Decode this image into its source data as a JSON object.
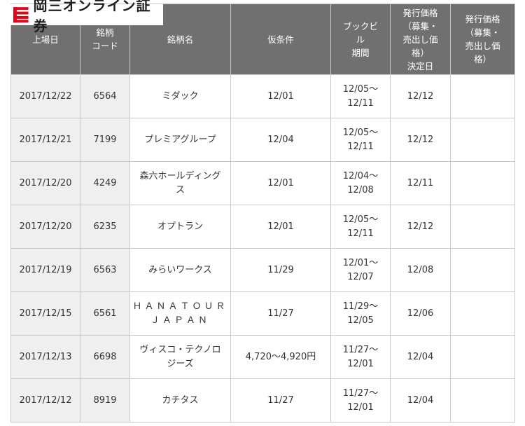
{
  "brand": {
    "name": "岡三オンライン証券",
    "mark_color": "#e60012"
  },
  "table": {
    "headers": [
      {
        "lines": [
          "上場日"
        ]
      },
      {
        "lines": [
          "銘柄",
          "コード"
        ]
      },
      {
        "lines": [
          "銘柄名"
        ]
      },
      {
        "lines": [
          "仮条件"
        ]
      },
      {
        "lines": [
          "ブックビ",
          "ル",
          "期間"
        ]
      },
      {
        "lines": [
          "発行価格",
          "（募集・",
          "売出し価",
          "格）",
          "決定日"
        ]
      },
      {
        "lines": [
          "発行価格",
          "（募集・",
          "売出し価",
          "格）"
        ]
      }
    ],
    "rows": [
      {
        "date": "2017/12/22",
        "code": "6564",
        "name": [
          "ミダック"
        ],
        "cond": "12/01",
        "book": [
          "12/05～",
          "12/11"
        ],
        "decision": "12/12",
        "price": ""
      },
      {
        "date": "2017/12/21",
        "code": "7199",
        "name": [
          "プレミアグループ"
        ],
        "cond": "12/04",
        "book": [
          "12/05～",
          "12/11"
        ],
        "decision": "12/12",
        "price": ""
      },
      {
        "date": "2017/12/20",
        "code": "4249",
        "name": [
          "森六ホールディング",
          "ス"
        ],
        "cond": "12/01",
        "book": [
          "12/04～",
          "12/08"
        ],
        "decision": "12/11",
        "price": ""
      },
      {
        "date": "2017/12/20",
        "code": "6235",
        "name": [
          "オプトラン"
        ],
        "cond": "12/01",
        "book": [
          "12/05～",
          "12/11"
        ],
        "decision": "12/12",
        "price": ""
      },
      {
        "date": "2017/12/19",
        "code": "6563",
        "name": [
          "みらいワークス"
        ],
        "cond": "11/29",
        "book": [
          "12/01～",
          "12/07"
        ],
        "decision": "12/08",
        "price": ""
      },
      {
        "date": "2017/12/15",
        "code": "6561",
        "name": [
          "ＨＡＮＡＴＯＵＲ",
          "ＪＡＰＡＮ"
        ],
        "cond": "11/27",
        "book": [
          "11/29～",
          "12/05"
        ],
        "decision": "12/06",
        "price": ""
      },
      {
        "date": "2017/12/13",
        "code": "6698",
        "name": [
          "ヴィスコ・テクノロ",
          "ジーズ"
        ],
        "cond": "4,720～4,920円",
        "book": [
          "11/27～",
          "12/01"
        ],
        "decision": "12/04",
        "price": ""
      },
      {
        "date": "2017/12/12",
        "code": "8919",
        "name": [
          "カチタス"
        ],
        "cond": "11/27",
        "book": [
          "11/27～",
          "12/01"
        ],
        "decision": "12/04",
        "price": ""
      }
    ]
  }
}
